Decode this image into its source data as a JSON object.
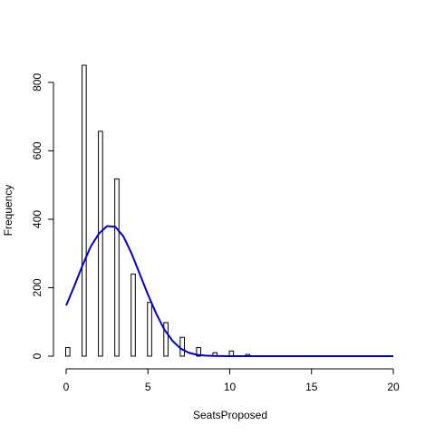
{
  "chart_data": {
    "type": "bar",
    "title": "",
    "xlabel": "SeatsProposed",
    "ylabel": "Frequency",
    "xlim": [
      0,
      20
    ],
    "ylim": [
      0,
      850
    ],
    "x_ticks": [
      "0",
      "5",
      "10",
      "15",
      "20"
    ],
    "x_tick_values": [
      0,
      5,
      10,
      15,
      20
    ],
    "y_ticks": [
      "0",
      "200",
      "400",
      "600",
      "800"
    ],
    "y_tick_values": [
      0,
      200,
      400,
      600,
      800
    ],
    "bars": [
      {
        "x": 0,
        "value": 25
      },
      {
        "x": 1,
        "value": 850
      },
      {
        "x": 2,
        "value": 657
      },
      {
        "x": 3,
        "value": 518
      },
      {
        "x": 4,
        "value": 240
      },
      {
        "x": 5,
        "value": 157
      },
      {
        "x": 6,
        "value": 98
      },
      {
        "x": 7,
        "value": 55
      },
      {
        "x": 8,
        "value": 25
      },
      {
        "x": 9,
        "value": 10
      },
      {
        "x": 10,
        "value": 15
      },
      {
        "x": 11,
        "value": 5
      }
    ],
    "curve": {
      "color": "#0000cc",
      "x": [
        0,
        0.5,
        1,
        1.5,
        2,
        2.5,
        3,
        3.5,
        4,
        4.5,
        5,
        5.5,
        6,
        6.5,
        7,
        7.5,
        8,
        8.5,
        9,
        10,
        12,
        14,
        16,
        18,
        20
      ],
      "y": [
        148,
        205,
        265,
        320,
        358,
        380,
        378,
        350,
        300,
        240,
        180,
        125,
        78,
        45,
        22,
        10,
        4,
        1.5,
        0.5,
        0,
        0,
        0,
        0,
        0,
        0
      ]
    },
    "grid": false,
    "legend": "none"
  }
}
